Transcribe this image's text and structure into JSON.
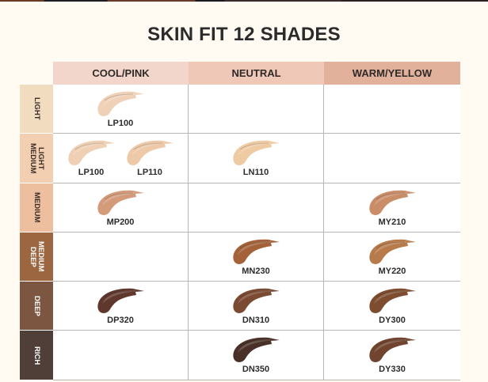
{
  "title": "SKIN FIT 12 SHADES",
  "columns": [
    {
      "label": "COOL/PINK",
      "color": "#f2d6cc"
    },
    {
      "label": "NEUTRAL",
      "color": "#efc8b8"
    },
    {
      "label": "WARM/YELLOW",
      "color": "#e2b19b"
    }
  ],
  "rows": [
    {
      "label": "LIGHT",
      "color": "#f2dcc0",
      "text_color": "#3a2e28",
      "cells": [
        [
          {
            "code": "LP100",
            "color": "#efd1b7"
          }
        ],
        [],
        []
      ]
    },
    {
      "label": "LIGHT\nMEDIUM",
      "color": "#f3cfb2",
      "text_color": "#3a2e28",
      "cells": [
        [
          {
            "code": "LP100",
            "color": "#efd0b4"
          },
          {
            "code": "LP110",
            "color": "#edc9a8"
          }
        ],
        [
          {
            "code": "LN110",
            "color": "#efcba3"
          }
        ],
        []
      ]
    },
    {
      "label": "MEDIUM",
      "color": "#eebf9e",
      "text_color": "#3a2e28",
      "cells": [
        [
          {
            "code": "MP200",
            "color": "#d49b7b"
          }
        ],
        [],
        [
          {
            "code": "MY210",
            "color": "#c98d68"
          }
        ]
      ]
    },
    {
      "label": "MEDIUM\nDEEP",
      "color": "#9c6640",
      "text_color": "#ffffff",
      "cells": [
        [],
        [
          {
            "code": "MN230",
            "color": "#a3623a"
          }
        ],
        [
          {
            "code": "MY220",
            "color": "#b77b4b"
          }
        ]
      ]
    },
    {
      "label": "DEEP",
      "color": "#7c5640",
      "text_color": "#ffffff",
      "cells": [
        [
          {
            "code": "DP320",
            "color": "#5f372d"
          }
        ],
        [
          {
            "code": "DN310",
            "color": "#7b4a32"
          }
        ],
        [
          {
            "code": "DY300",
            "color": "#7e4d30"
          }
        ]
      ]
    },
    {
      "label": "RICH",
      "color": "#4f3f38",
      "text_color": "#ffffff",
      "cells": [
        [],
        [
          {
            "code": "DN350",
            "color": "#4a3128"
          }
        ],
        [
          {
            "code": "DY330",
            "color": "#70442e"
          }
        ]
      ]
    }
  ]
}
